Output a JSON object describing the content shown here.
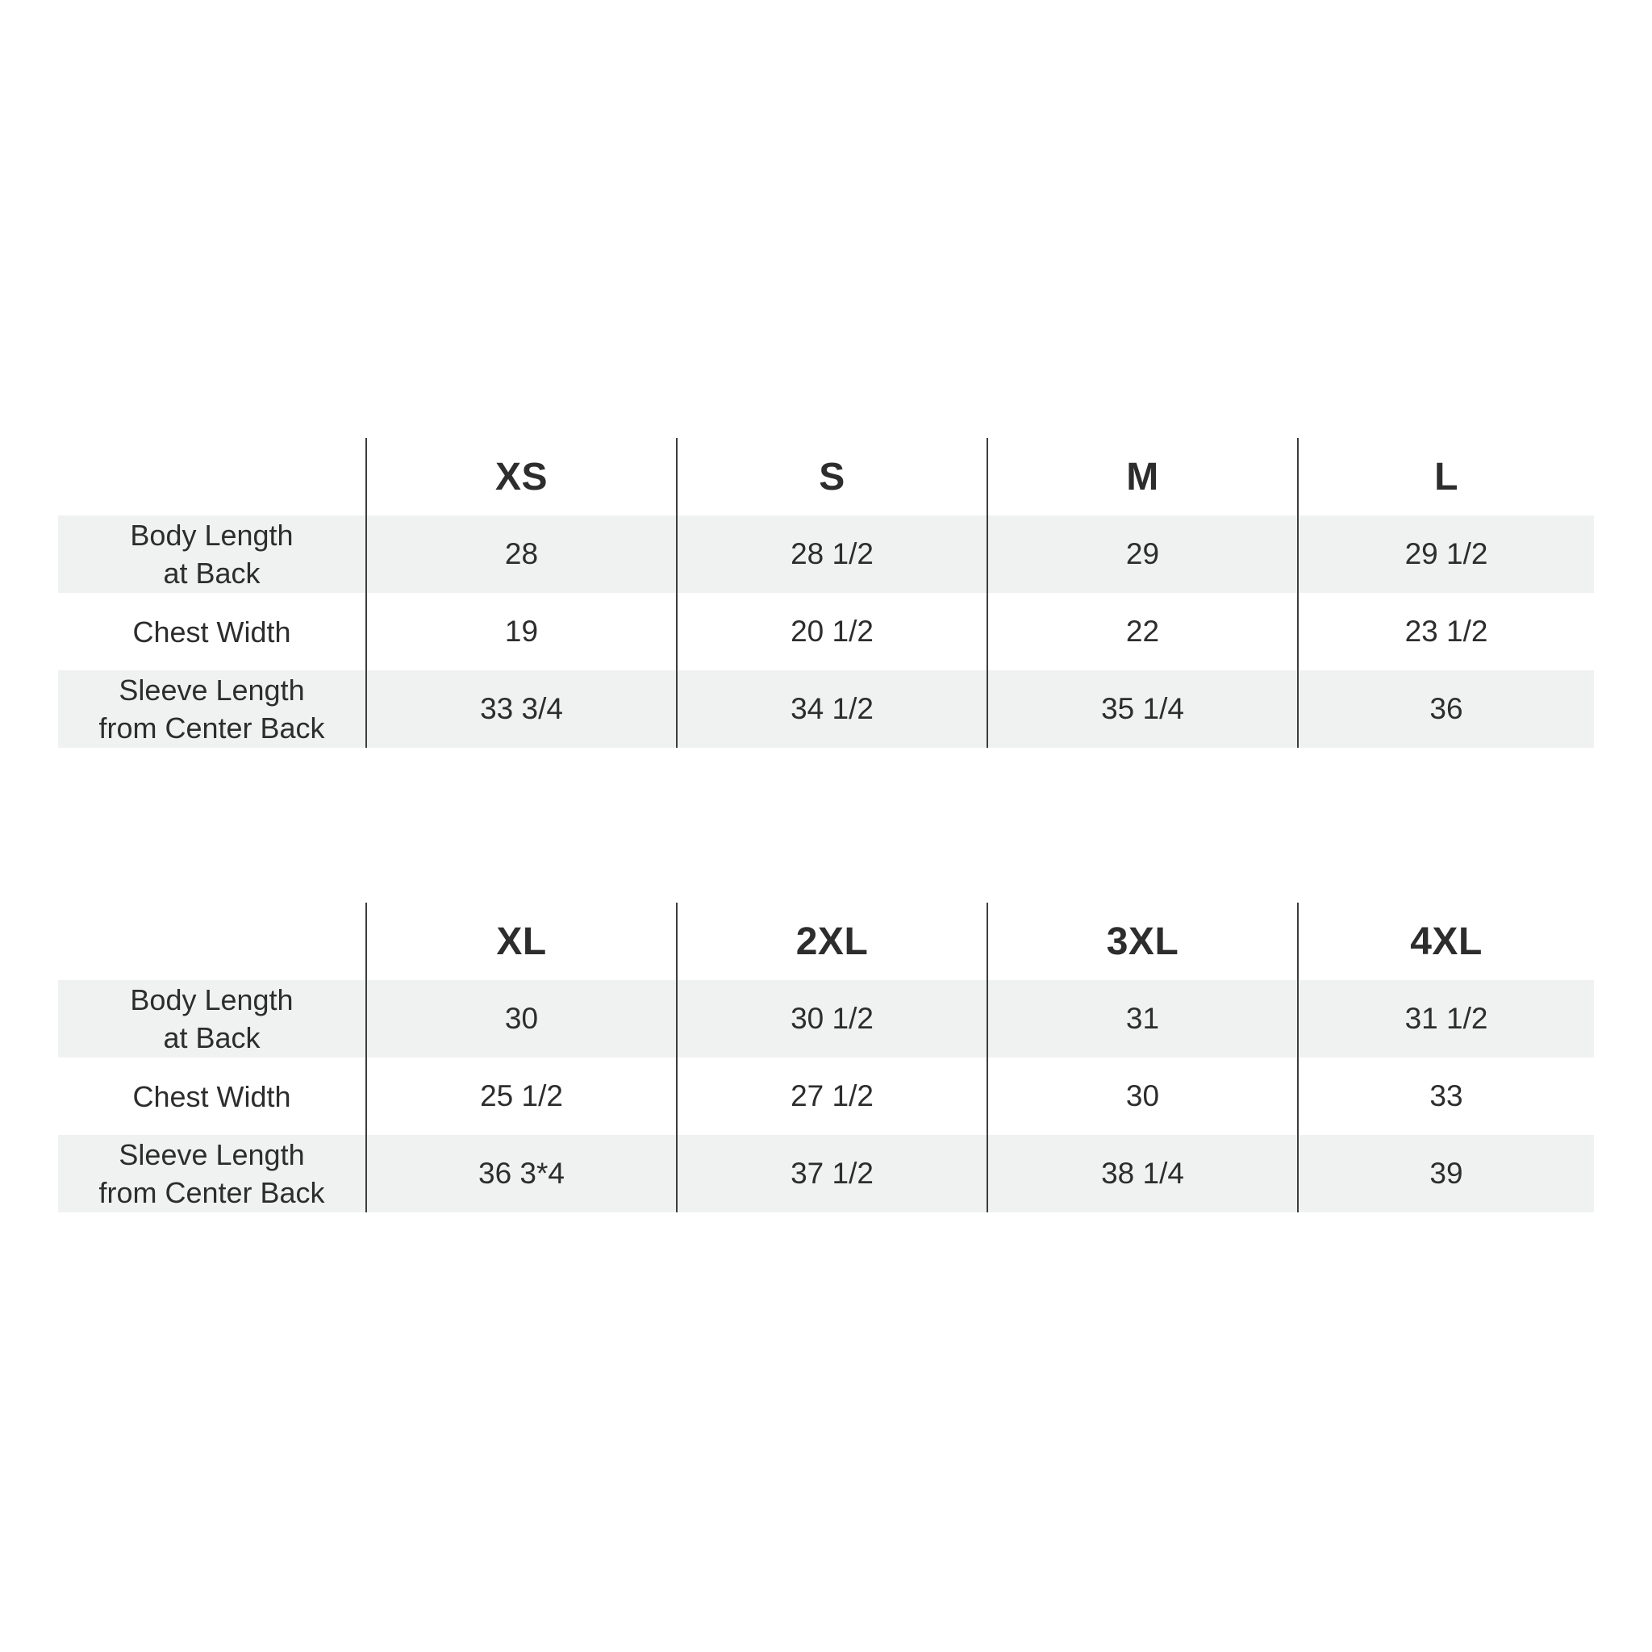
{
  "colors": {
    "text": "#2d2d2d",
    "divider": "#3c3c3c",
    "shade": "#f0f1f1",
    "background": "#ffffff"
  },
  "tables": [
    {
      "columns": [
        "XS",
        "S",
        "M",
        "L"
      ],
      "rows": [
        {
          "label": "Body Length\nat Back",
          "values": [
            "28",
            "28 1/2",
            "29",
            "29 1/2"
          ]
        },
        {
          "label": "Chest Width",
          "values": [
            "19",
            "20 1/2",
            "22",
            "23 1/2"
          ]
        },
        {
          "label": "Sleeve Length\nfrom Center Back",
          "values": [
            "33 3/4",
            "34 1/2",
            "35 1/4",
            "36"
          ]
        }
      ]
    },
    {
      "columns": [
        "XL",
        "2XL",
        "3XL",
        "4XL"
      ],
      "rows": [
        {
          "label": "Body Length\nat Back",
          "values": [
            "30",
            "30 1/2",
            "31",
            "31 1/2"
          ]
        },
        {
          "label": "Chest Width",
          "values": [
            "25 1/2",
            "27 1/2",
            "30",
            "33"
          ]
        },
        {
          "label": "Sleeve Length\nfrom Center Back",
          "values": [
            "36 3*4",
            "37 1/2",
            "38 1/4",
            "39"
          ]
        }
      ]
    }
  ],
  "chart_data": [
    {
      "type": "table",
      "title": "Size chart (XS–L), measurements in inches",
      "columns": [
        "",
        "XS",
        "S",
        "M",
        "L"
      ],
      "rows": [
        [
          "Body Length at Back",
          "28",
          "28 1/2",
          "29",
          "29 1/2"
        ],
        [
          "Chest Width",
          "19",
          "20 1/2",
          "22",
          "23 1/2"
        ],
        [
          "Sleeve Length from Center Back",
          "33 3/4",
          "34 1/2",
          "35 1/4",
          "36"
        ]
      ],
      "layout": {
        "shaded_rows": [
          1,
          3
        ],
        "grid": "vertical-dividers-only"
      }
    },
    {
      "type": "table",
      "title": "Size chart (XL–4XL), measurements in inches",
      "columns": [
        "",
        "XL",
        "2XL",
        "3XL",
        "4XL"
      ],
      "rows": [
        [
          "Body Length at Back",
          "30",
          "30 1/2",
          "31",
          "31 1/2"
        ],
        [
          "Chest Width",
          "25 1/2",
          "27 1/2",
          "30",
          "33"
        ],
        [
          "Sleeve Length from Center Back",
          "36 3*4",
          "37 1/2",
          "38 1/4",
          "39"
        ]
      ],
      "layout": {
        "shaded_rows": [
          1,
          3
        ],
        "grid": "vertical-dividers-only"
      }
    }
  ]
}
